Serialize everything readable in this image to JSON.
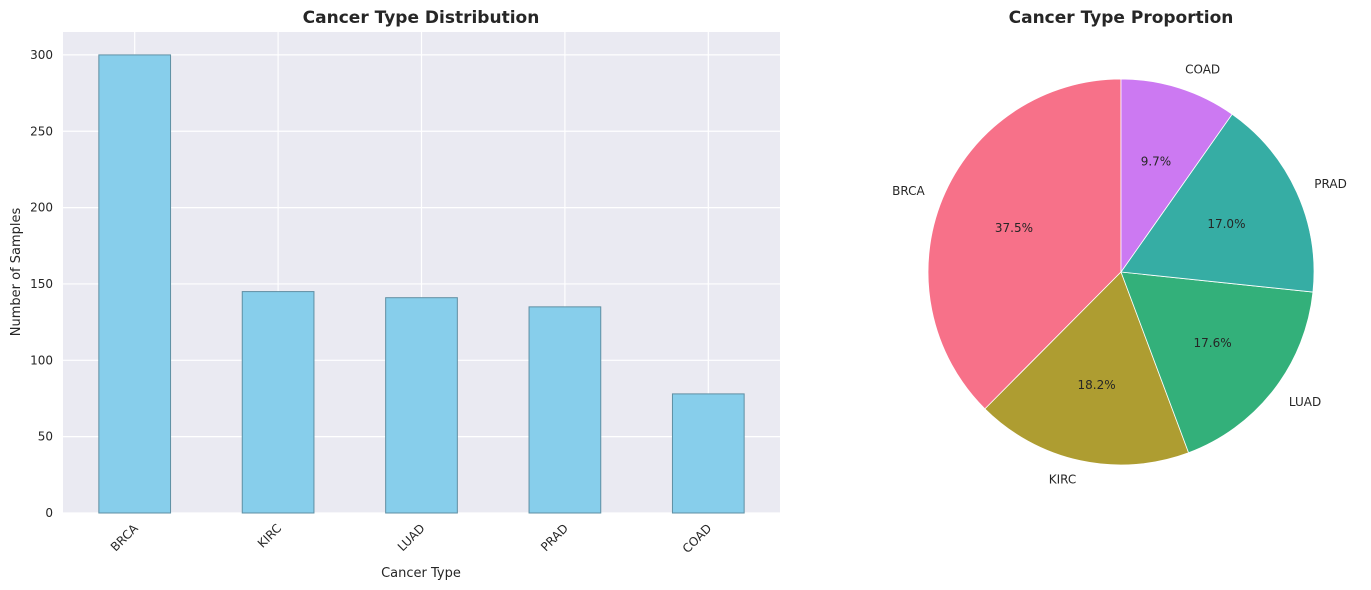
{
  "chart_data": [
    {
      "type": "bar",
      "title": "Cancer Type Distribution",
      "xlabel": "Cancer Type",
      "ylabel": "Number of Samples",
      "categories": [
        "BRCA",
        "KIRC",
        "LUAD",
        "PRAD",
        "COAD"
      ],
      "values": [
        300,
        145,
        141,
        135,
        78
      ],
      "ylim": [
        0,
        315
      ],
      "yticks": [
        "0",
        "50",
        "100",
        "150",
        "200",
        "250",
        "300"
      ],
      "grid": true,
      "bar_color": "#87ceeb",
      "edge_color": "#5f8fa3",
      "background": "#eaeaf2"
    },
    {
      "type": "pie",
      "title": "Cancer Type Proportion",
      "labels": [
        "BRCA",
        "KIRC",
        "LUAD",
        "PRAD",
        "COAD"
      ],
      "values": [
        300,
        145,
        141,
        135,
        78
      ],
      "percent_labels": [
        "37.5%",
        "18.2%",
        "17.6%",
        "17.0%",
        "9.7%"
      ],
      "colors": [
        "#f77189",
        "#ae9d31",
        "#33b07a",
        "#36ada4",
        "#cc79f2"
      ],
      "start_angle_deg": 90,
      "direction": "counterclockwise"
    }
  ]
}
